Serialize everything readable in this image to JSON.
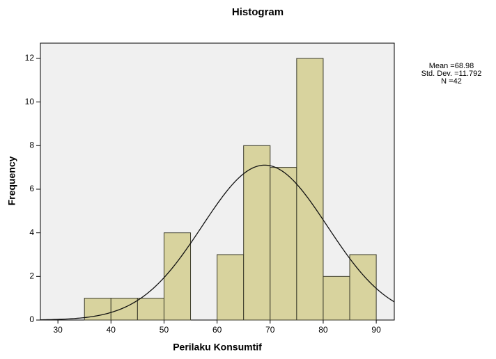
{
  "chart_data": {
    "type": "histogram",
    "title": "Histogram",
    "x_label": "Perilaku Konsumtif",
    "y_label": "Frequency",
    "bins": [
      35,
      40,
      45,
      50,
      55,
      60,
      65,
      70,
      75,
      80,
      85,
      90
    ],
    "counts": [
      1,
      1,
      1,
      4,
      0,
      3,
      8,
      7,
      12,
      2,
      3
    ],
    "color": "#d8d39e",
    "edge_color": "#3a3a2a",
    "curve_color": "#111111",
    "xlim": [
      26.7,
      93.4
    ],
    "xticks": [
      30,
      40,
      50,
      60,
      70,
      80,
      90
    ],
    "ylim": [
      0,
      12.7
    ],
    "yticks": [
      0,
      2,
      4,
      6,
      8,
      10,
      12
    ],
    "mean": 68.98,
    "std_dev": 11.792,
    "n": 42,
    "stats_labels": [
      "Mean =68.98",
      "Std. Dev. =11.792",
      "N =42"
    ]
  }
}
